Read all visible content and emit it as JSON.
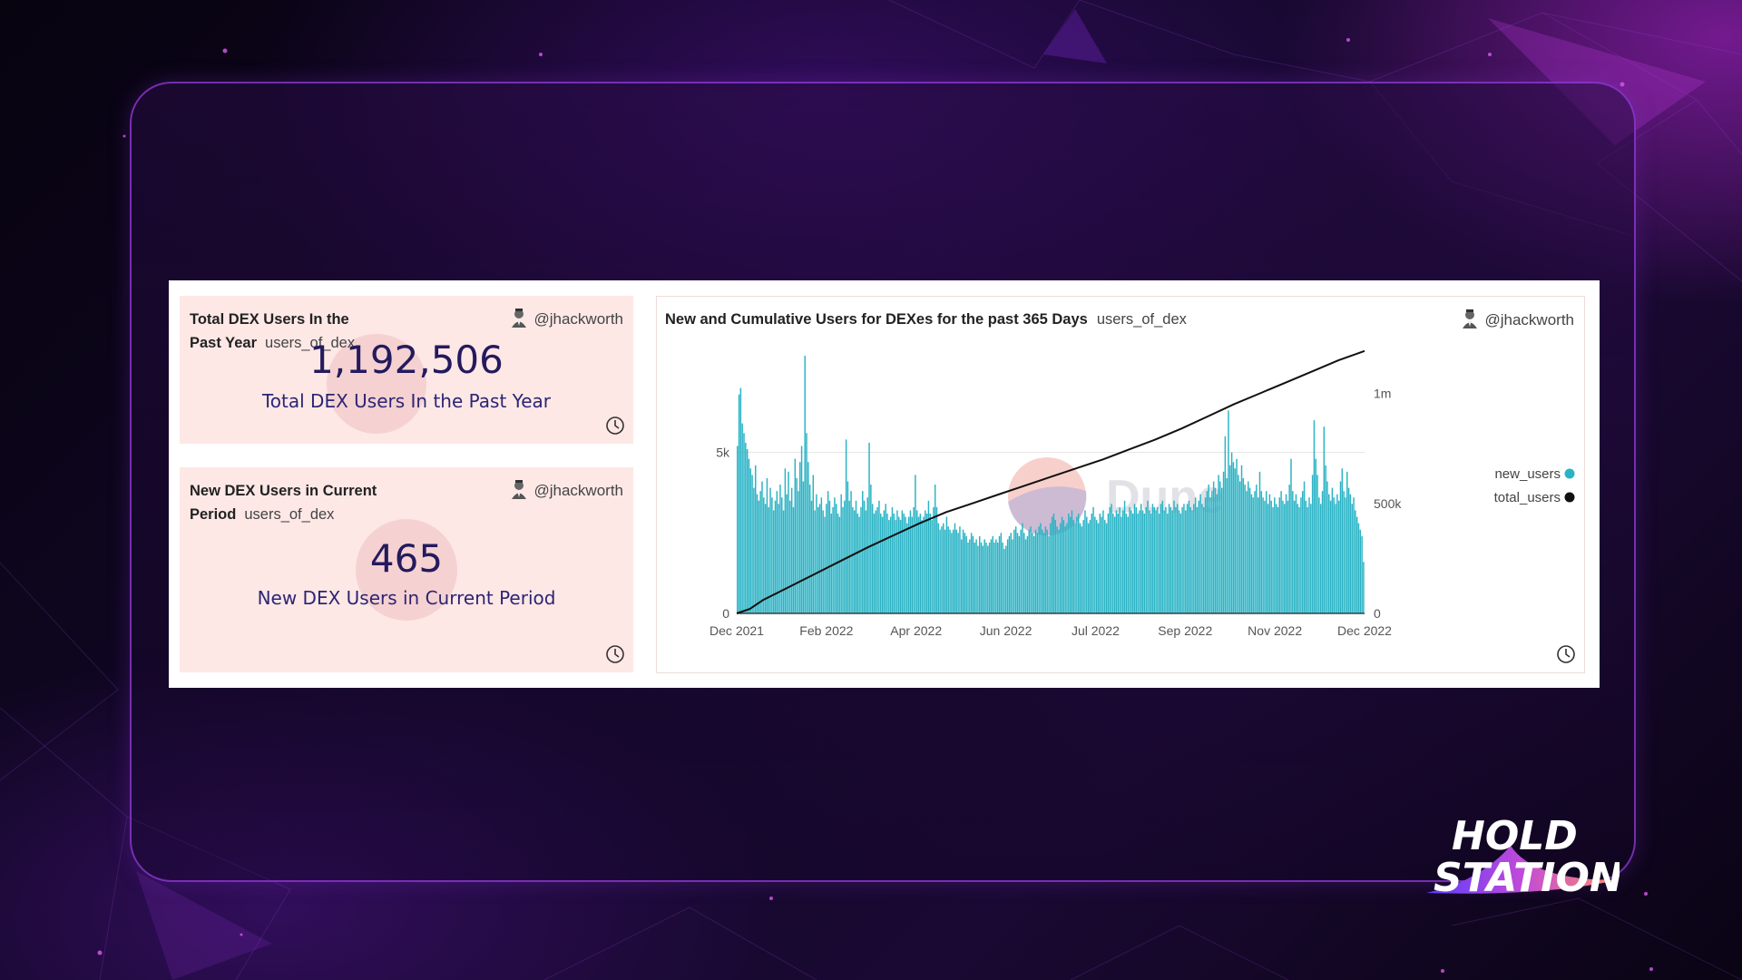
{
  "cards": {
    "total": {
      "title": "Total DEX Users In the Past Year",
      "query": "users_of_dex",
      "author": "@jhackworth",
      "value": "1,192,506",
      "label": "Total DEX Users In the Past Year"
    },
    "new": {
      "title": "New DEX Users in Current Period",
      "query": "users_of_dex",
      "author": "@jhackworth",
      "value": "465",
      "label": "New DEX Users in Current Period"
    }
  },
  "chart_panel": {
    "title": "New and Cumulative Users for DEXes for the past 365 Days",
    "query": "users_of_dex",
    "author": "@jhackworth",
    "watermark": "Dune"
  },
  "logo": {
    "line1": "HOLD",
    "line2": "STATION"
  },
  "colors": {
    "bar": "#2ab3c5",
    "line": "#111111",
    "card_bg": "#fde8e6",
    "value_text": "#241a5e"
  },
  "chart_data": {
    "type": "bar",
    "title": "New and Cumulative Users for DEXes for the past 365 Days",
    "x_ticks": [
      "Dec 2021",
      "Feb 2022",
      "Apr 2022",
      "Jun 2022",
      "Jul 2022",
      "Sep 2022",
      "Nov 2022",
      "Dec 2022"
    ],
    "y_left_ticks": [
      "0",
      "5k"
    ],
    "y_left_range": [
      0,
      8200
    ],
    "y_right_ticks": [
      "0",
      "500k",
      "1m"
    ],
    "y_right_range": [
      0,
      1200000
    ],
    "grid": "horizontal",
    "legend_position": "right",
    "series": [
      {
        "name": "new_users",
        "type": "bar",
        "axis": "left",
        "period_start": "Dec 2021",
        "period_end": "Dec 2022",
        "values": [
          5200,
          6800,
          7000,
          5900,
          5600,
          5300,
          5100,
          4800,
          4500,
          4300,
          3900,
          4600,
          3700,
          3500,
          3800,
          4100,
          3600,
          3400,
          4200,
          3300,
          3900,
          3600,
          3200,
          3500,
          3800,
          3400,
          4000,
          3600,
          3200,
          4500,
          3700,
          4400,
          3500,
          3900,
          3300,
          4800,
          4200,
          3800,
          4700,
          5200,
          4100,
          8000,
          5600,
          4700,
          4000,
          3500,
          4300,
          3200,
          3700,
          3300,
          3400,
          3600,
          3200,
          3000,
          3400,
          3800,
          3500,
          3100,
          3300,
          3600,
          3400,
          3100,
          3000,
          3700,
          3300,
          3500,
          5400,
          4100,
          3500,
          3800,
          3300,
          3200,
          3500,
          3100,
          3000,
          3300,
          3800,
          3500,
          3200,
          3600,
          5300,
          4000,
          3400,
          3100,
          3200,
          3300,
          3500,
          3100,
          3000,
          3200,
          3400,
          3100,
          2900,
          3000,
          3300,
          3100,
          2900,
          3200,
          3000,
          2900,
          3200,
          3100,
          3000,
          2800,
          3000,
          3200,
          3000,
          3300,
          4300,
          3200,
          3000,
          3100,
          2900,
          3000,
          3200,
          3100,
          3500,
          3100,
          2900,
          3300,
          4000,
          3300,
          2800,
          2600,
          2700,
          2800,
          2600,
          3000,
          2700,
          2600,
          2500,
          2600,
          2800,
          2600,
          2500,
          2700,
          2300,
          2600,
          2500,
          2400,
          2200,
          2300,
          2500,
          2400,
          2200,
          2300,
          2100,
          2400,
          2200,
          2100,
          2300,
          2200,
          2100,
          2200,
          2300,
          2400,
          2200,
          2300,
          2200,
          2400,
          2500,
          2200,
          2000,
          2100,
          2300,
          2400,
          2500,
          2300,
          2600,
          2700,
          2500,
          2400,
          2600,
          2800,
          2500,
          2300,
          2400,
          2600,
          2700,
          2500,
          2400,
          2600,
          2500,
          2700,
          2800,
          2600,
          2500,
          2700,
          2600,
          2400,
          2800,
          3000,
          3100,
          2900,
          2700,
          2600,
          2800,
          3000,
          2900,
          2700,
          2800,
          3100,
          3000,
          3200,
          2900,
          2800,
          3000,
          3100,
          2800,
          2700,
          2900,
          3200,
          3000,
          2800,
          2900,
          3100,
          3300,
          3000,
          2900,
          2800,
          3100,
          3000,
          3200,
          2900,
          2800,
          3100,
          3300,
          3400,
          3100,
          3000,
          3200,
          3100,
          3300,
          3000,
          3200,
          3500,
          3100,
          3000,
          3300,
          3200,
          3100,
          3400,
          3300,
          3100,
          3200,
          3400,
          3200,
          3100,
          3300,
          3500,
          3200,
          3100,
          3400,
          3300,
          3200,
          3300,
          3100,
          3400,
          3500,
          3200,
          3300,
          3100,
          3400,
          3300,
          3200,
          3500,
          3300,
          3400,
          3200,
          3100,
          3300,
          3400,
          3200,
          3400,
          3500,
          3300,
          3200,
          3400,
          3600,
          3300,
          3500,
          3700,
          3400,
          3300,
          3600,
          3800,
          4000,
          3600,
          3800,
          4100,
          3900,
          3700,
          4300,
          4100,
          3900,
          4400,
          5500,
          4200,
          6300,
          4600,
          5000,
          4700,
          4500,
          4800,
          4300,
          4100,
          4600,
          4200,
          4000,
          3800,
          4100,
          3900,
          3700,
          3600,
          3800,
          4000,
          3600,
          4400,
          3800,
          3600,
          3500,
          3800,
          3400,
          3700,
          3500,
          3300,
          3600,
          3400,
          3300,
          3600,
          3800,
          3500,
          3400,
          3700,
          3500,
          4000,
          4800,
          3800,
          3500,
          3700,
          3400,
          3300,
          3600,
          3800,
          4100,
          3500,
          3300,
          3600,
          3400,
          4300,
          6000,
          4800,
          4300,
          3600,
          3400,
          3800,
          5800,
          4600,
          4100,
          3700,
          3500,
          3900,
          3600,
          3400,
          3700,
          3500,
          4100,
          4500,
          3800,
          3600,
          4400,
          3900,
          3700,
          3400,
          3600,
          3200,
          3000,
          2800,
          2600,
          2400,
          1600
        ]
      },
      {
        "name": "total_users",
        "type": "line",
        "axis": "right",
        "points": [
          [
            0,
            0
          ],
          [
            10,
            20000
          ],
          [
            20,
            60000
          ],
          [
            40,
            120000
          ],
          [
            60,
            180000
          ],
          [
            80,
            240000
          ],
          [
            100,
            300000
          ],
          [
            120,
            355000
          ],
          [
            140,
            410000
          ],
          [
            160,
            460000
          ],
          [
            180,
            500000
          ],
          [
            200,
            540000
          ],
          [
            220,
            580000
          ],
          [
            240,
            620000
          ],
          [
            260,
            660000
          ],
          [
            280,
            700000
          ],
          [
            300,
            745000
          ],
          [
            320,
            790000
          ],
          [
            340,
            840000
          ],
          [
            360,
            895000
          ],
          [
            380,
            950000
          ],
          [
            400,
            1000000
          ],
          [
            420,
            1050000
          ],
          [
            440,
            1100000
          ],
          [
            460,
            1150000
          ],
          [
            480,
            1192506
          ]
        ]
      }
    ]
  }
}
